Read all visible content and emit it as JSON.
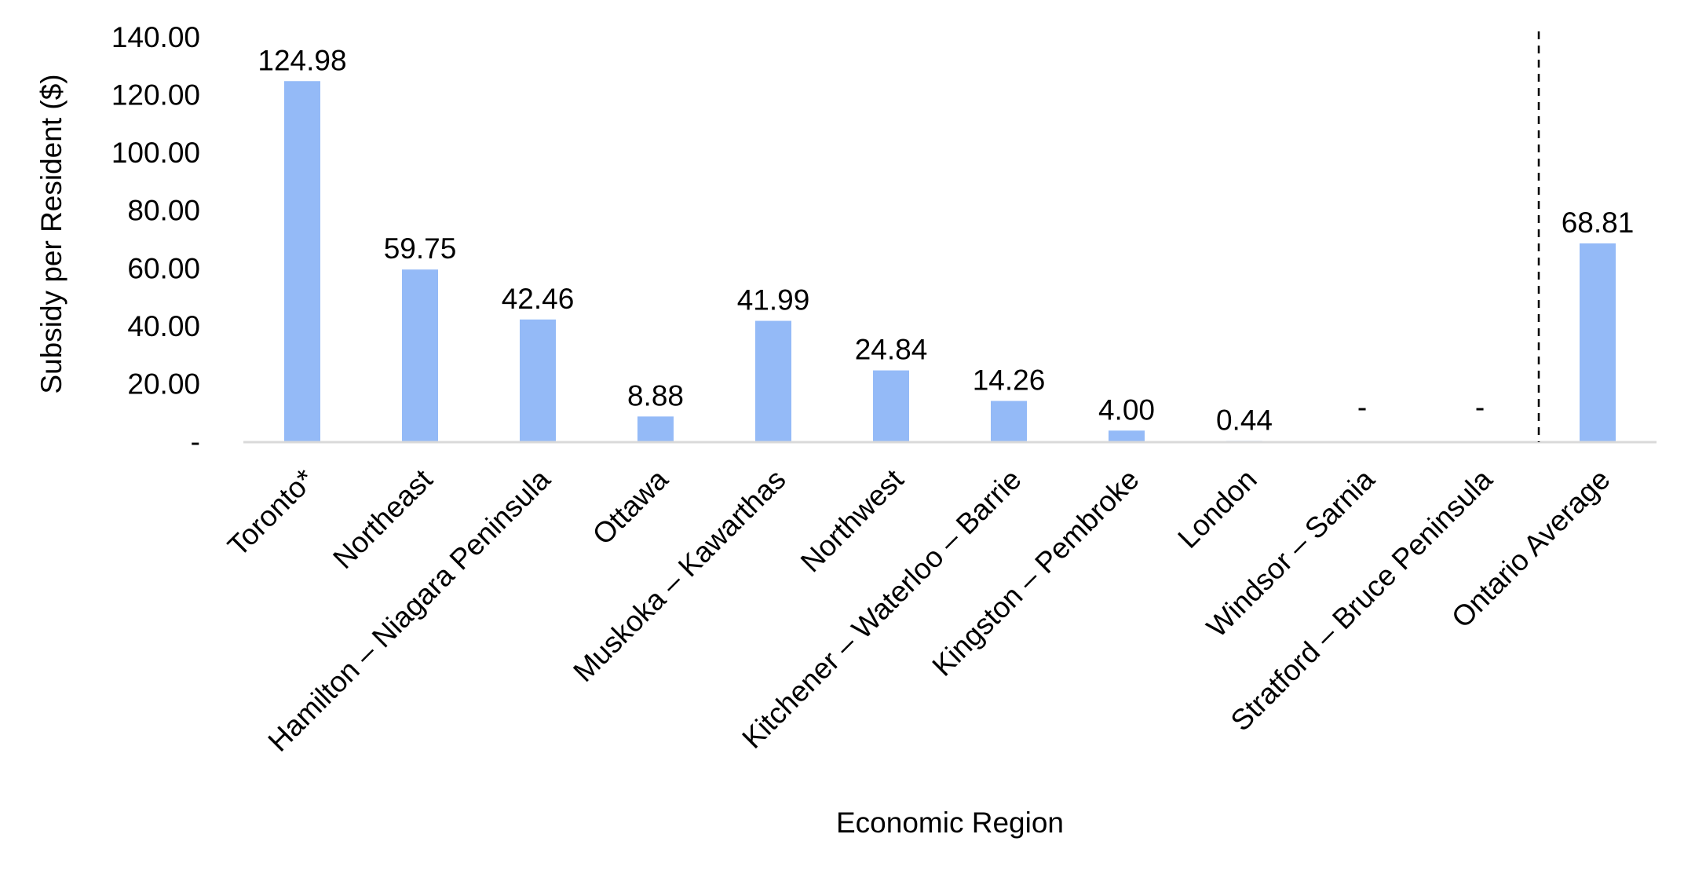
{
  "chart_data": {
    "type": "bar",
    "title": "",
    "xlabel": "Economic Region",
    "ylabel": "Subsidy per Resident ($)",
    "ylim": [
      0,
      140
    ],
    "yticks": [
      {
        "value": 0,
        "label": "-"
      },
      {
        "value": 20,
        "label": "20.00"
      },
      {
        "value": 40,
        "label": "40.00"
      },
      {
        "value": 60,
        "label": "60.00"
      },
      {
        "value": 80,
        "label": "80.00"
      },
      {
        "value": 100,
        "label": "100.00"
      },
      {
        "value": 120,
        "label": "120.00"
      },
      {
        "value": 140,
        "label": "140.00"
      }
    ],
    "categories": [
      "Toronto*",
      "Northeast",
      "Hamilton – Niagara Peninsula",
      "Ottawa",
      "Muskoka – Kawarthas",
      "Northwest",
      "Kitchener – Waterloo – Barrie",
      "Kingston – Pembroke",
      "London",
      "Windsor – Sarnia",
      "Stratford – Bruce Peninsula",
      "Ontario Average"
    ],
    "values": [
      124.98,
      59.75,
      42.46,
      8.88,
      41.99,
      24.84,
      14.26,
      4.0,
      0.44,
      0,
      0,
      68.81
    ],
    "data_labels": [
      "124.98",
      "59.75",
      "42.46",
      "8.88",
      "41.99",
      "24.84",
      "14.26",
      "4.00",
      "0.44",
      "-",
      "-",
      "68.81"
    ],
    "bar_color": "#94BAF7",
    "axis_color": "#d9d9d9",
    "separator": {
      "after_category": "Stratford – Bruce Peninsula",
      "style": "dashed",
      "color": "#000000"
    },
    "grid": false,
    "legend": "none"
  }
}
